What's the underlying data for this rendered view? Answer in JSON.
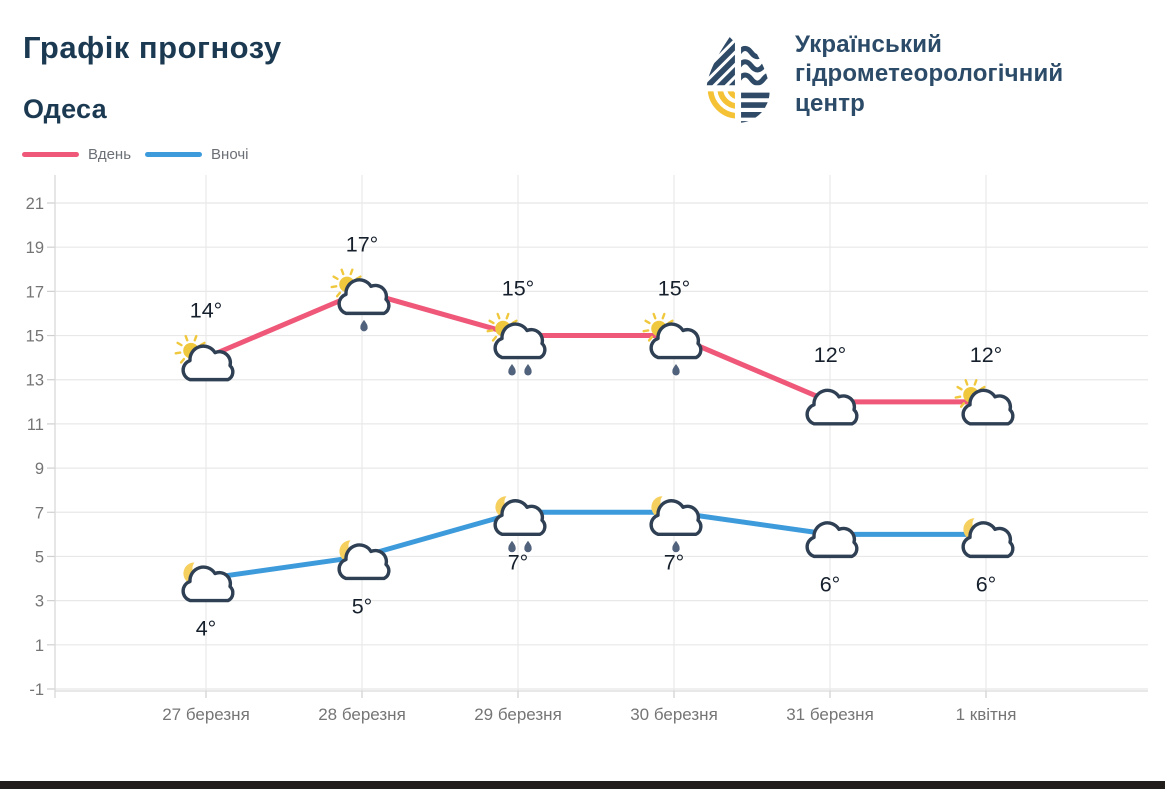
{
  "header": {
    "title": "Графік прогнозу",
    "city": "Одеса"
  },
  "logo": {
    "org_name_lines": [
      "Український",
      "гідрометеорологічний",
      "центр"
    ],
    "icon": "uhmc-droplet-logo"
  },
  "legend": [
    {
      "label": "Вдень",
      "color": "#ef5878"
    },
    {
      "label": "Вночі",
      "color": "#3e9bdb"
    }
  ],
  "colors": {
    "title_text": "#1b3a52",
    "brand_text": "#2c4b68",
    "day_line": "#ef5878",
    "night_line": "#3e9bdb",
    "gridline": "#e8e8e8",
    "axis_line": "#d9d9d9",
    "tick_mark": "#cfcfcf",
    "axis_label": "#757575",
    "temp_label": "#16202c",
    "cloud_stroke": "#2f4054",
    "sun": "#f0c83e",
    "moon": "#f6d05f",
    "raindrop": "#51627c",
    "logo_navy": "#2e4a66",
    "logo_yellow": "#f4c234"
  },
  "chart_data": {
    "type": "line",
    "title": "Графік прогнозу — Одеса",
    "categories": [
      "27 березня",
      "28 березня",
      "29 березня",
      "30 березня",
      "31 березня",
      "1 квітня"
    ],
    "series": [
      {
        "name": "Вдень",
        "color": "#ef5878",
        "values": [
          14,
          17,
          15,
          15,
          12,
          12
        ],
        "labels": [
          "14°",
          "17°",
          "15°",
          "15°",
          "12°",
          "12°"
        ],
        "icons": [
          "sun-cloud",
          "sun-cloud-rain-1",
          "sun-cloud-rain-2",
          "sun-cloud-rain-1",
          "cloud",
          "sun-cloud"
        ],
        "label_position": "above"
      },
      {
        "name": "Вночі",
        "color": "#3e9bdb",
        "values": [
          4,
          5,
          7,
          7,
          6,
          6
        ],
        "labels": [
          "4°",
          "5°",
          "7°",
          "7°",
          "6°",
          "6°"
        ],
        "icons": [
          "moon-cloud",
          "moon-cloud",
          "moon-cloud-rain-2",
          "moon-cloud-rain-1",
          "cloud",
          "moon-cloud"
        ],
        "label_position": "below"
      }
    ],
    "ylim": [
      -1,
      21
    ],
    "yticks": [
      -1,
      1,
      3,
      5,
      7,
      9,
      11,
      13,
      15,
      17,
      19,
      21
    ],
    "grid": true,
    "legend_position": "top-left"
  }
}
